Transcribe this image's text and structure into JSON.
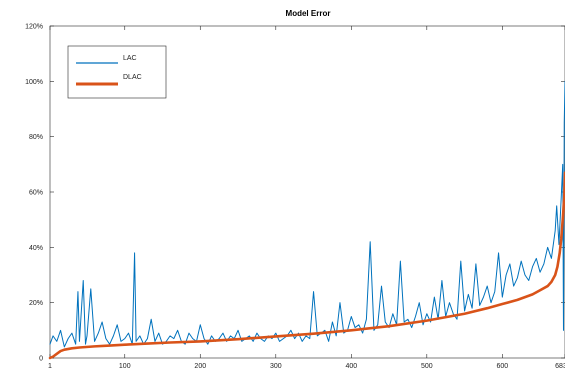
{
  "chart_data": {
    "type": "line",
    "title": "Model Error",
    "xlabel": "",
    "ylabel": "",
    "xlim": [
      1,
      683
    ],
    "ylim": [
      0,
      1.2
    ],
    "x_ticks": [
      1,
      100,
      200,
      300,
      400,
      500,
      600,
      683
    ],
    "y_ticks": [
      0,
      0.2,
      0.4,
      0.6,
      0.8,
      1.0,
      1.2
    ],
    "y_tick_labels": [
      "0",
      "20%",
      "40%",
      "60%",
      "80%",
      "100%",
      "120%"
    ],
    "grid": false,
    "legend_position": "top-left",
    "colors": {
      "LAC": "#0072BD",
      "DLAC": "#D95319"
    },
    "series": [
      {
        "name": "LAC",
        "color": "#0072BD",
        "x": [
          1,
          5,
          10,
          15,
          20,
          25,
          30,
          35,
          38,
          40,
          45,
          48,
          50,
          55,
          60,
          65,
          70,
          75,
          80,
          85,
          90,
          95,
          100,
          105,
          110,
          113,
          115,
          120,
          125,
          130,
          135,
          140,
          145,
          150,
          155,
          160,
          165,
          170,
          175,
          180,
          185,
          190,
          195,
          200,
          205,
          210,
          215,
          220,
          225,
          230,
          235,
          240,
          245,
          250,
          255,
          260,
          265,
          270,
          275,
          280,
          285,
          290,
          295,
          300,
          305,
          310,
          315,
          320,
          325,
          330,
          335,
          340,
          345,
          350,
          355,
          360,
          365,
          370,
          375,
          380,
          385,
          390,
          395,
          400,
          405,
          410,
          415,
          420,
          425,
          430,
          435,
          440,
          445,
          450,
          455,
          460,
          465,
          470,
          475,
          480,
          485,
          490,
          495,
          500,
          505,
          510,
          515,
          520,
          525,
          530,
          535,
          540,
          545,
          550,
          555,
          560,
          565,
          570,
          575,
          580,
          585,
          590,
          595,
          600,
          605,
          610,
          615,
          620,
          625,
          630,
          635,
          640,
          645,
          650,
          655,
          660,
          665,
          670,
          672,
          675,
          678,
          680,
          681,
          682,
          683
        ],
        "y": [
          0.05,
          0.08,
          0.06,
          0.1,
          0.04,
          0.07,
          0.09,
          0.05,
          0.24,
          0.06,
          0.28,
          0.05,
          0.08,
          0.25,
          0.06,
          0.09,
          0.13,
          0.07,
          0.05,
          0.08,
          0.12,
          0.06,
          0.07,
          0.09,
          0.05,
          0.38,
          0.06,
          0.08,
          0.05,
          0.07,
          0.14,
          0.06,
          0.09,
          0.05,
          0.06,
          0.08,
          0.07,
          0.1,
          0.06,
          0.05,
          0.09,
          0.07,
          0.06,
          0.12,
          0.07,
          0.05,
          0.08,
          0.06,
          0.07,
          0.09,
          0.06,
          0.08,
          0.07,
          0.1,
          0.06,
          0.07,
          0.08,
          0.06,
          0.09,
          0.07,
          0.06,
          0.08,
          0.07,
          0.09,
          0.06,
          0.07,
          0.08,
          0.1,
          0.07,
          0.09,
          0.06,
          0.08,
          0.07,
          0.24,
          0.08,
          0.09,
          0.1,
          0.06,
          0.13,
          0.08,
          0.2,
          0.09,
          0.1,
          0.15,
          0.11,
          0.12,
          0.09,
          0.14,
          0.42,
          0.1,
          0.12,
          0.26,
          0.13,
          0.11,
          0.16,
          0.12,
          0.35,
          0.13,
          0.14,
          0.11,
          0.15,
          0.2,
          0.12,
          0.16,
          0.13,
          0.22,
          0.14,
          0.28,
          0.15,
          0.2,
          0.16,
          0.14,
          0.35,
          0.17,
          0.23,
          0.18,
          0.34,
          0.19,
          0.22,
          0.26,
          0.2,
          0.24,
          0.38,
          0.22,
          0.3,
          0.34,
          0.26,
          0.29,
          0.35,
          0.3,
          0.28,
          0.33,
          0.36,
          0.31,
          0.34,
          0.4,
          0.36,
          0.46,
          0.55,
          0.41,
          0.58,
          0.7,
          0.1,
          0.85,
          1.0
        ]
      },
      {
        "name": "DLAC",
        "color": "#D95319",
        "x": [
          1,
          5,
          10,
          15,
          20,
          30,
          40,
          60,
          80,
          100,
          130,
          160,
          200,
          250,
          300,
          350,
          400,
          450,
          500,
          550,
          580,
          600,
          620,
          640,
          650,
          660,
          665,
          670,
          673,
          676,
          678,
          680,
          682,
          683
        ],
        "y": [
          0.0,
          0.005,
          0.015,
          0.025,
          0.03,
          0.035,
          0.038,
          0.042,
          0.045,
          0.048,
          0.052,
          0.056,
          0.06,
          0.068,
          0.078,
          0.088,
          0.1,
          0.115,
          0.135,
          0.16,
          0.18,
          0.195,
          0.21,
          0.23,
          0.245,
          0.26,
          0.275,
          0.3,
          0.33,
          0.38,
          0.43,
          0.5,
          0.58,
          0.67
        ]
      }
    ]
  }
}
